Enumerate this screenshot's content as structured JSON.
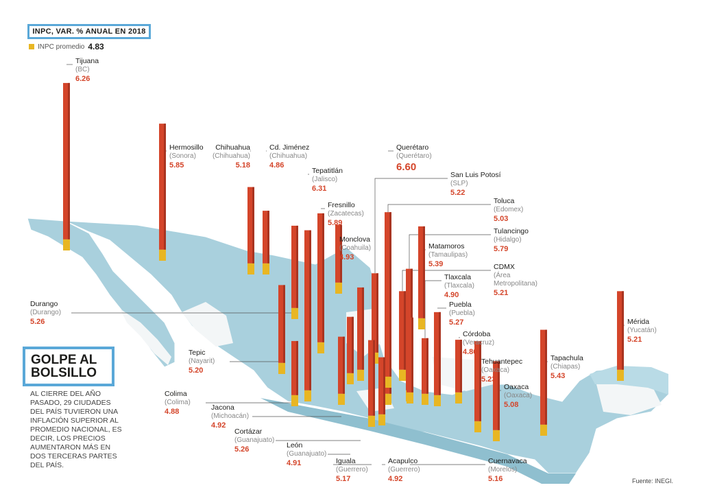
{
  "header": {
    "title": "INPC, VAR. % ANUAL EN 2018"
  },
  "average": {
    "label": "INPC promedio",
    "value": "4.83"
  },
  "sidebar": {
    "title": "GOLPE AL\nBOLSILLO",
    "body": "Al cierre del año pasado, 29 ciudades del país tuvieron una inflación superior al promedio nacional, es decir, los precios aumentaron más en dos terceras partes del país."
  },
  "source": "Fuente: INEGI.",
  "colors": {
    "bar": "#d4452a",
    "average_segment": "#e8b623",
    "map": "#a9d0dd",
    "accent_border": "#5aa8d8"
  },
  "chart_data": {
    "type": "bar",
    "title": "INPC, VAR. % ANUAL EN 2018",
    "average": 4.83,
    "highlight": "Querétaro",
    "series": [
      {
        "city": "Tijuana",
        "state": "BC",
        "value": "6.26"
      },
      {
        "city": "Hermosillo",
        "state": "Sonora",
        "value": "5.85"
      },
      {
        "city": "Chihuahua",
        "state": "Chihuahua",
        "value": "5.18"
      },
      {
        "city": "Cd. Jiménez",
        "state": "Chihuahua",
        "value": "4.86"
      },
      {
        "city": "Tepatitlán",
        "state": "Jalisco",
        "value": "6.31"
      },
      {
        "city": "Fresnillo",
        "state": "Zacatecas",
        "value": "5.89"
      },
      {
        "city": "Monclova",
        "state": "Coahuila",
        "value": "4.93"
      },
      {
        "city": "Querétaro",
        "state": "Querétaro",
        "value": "6.60"
      },
      {
        "city": "San Luis Potosí",
        "state": "SLP",
        "value": "5.22"
      },
      {
        "city": "Toluca",
        "state": "Edomex",
        "value": "5.03"
      },
      {
        "city": "Tulancingo",
        "state": "Hidalgo",
        "value": "5.79"
      },
      {
        "city": "Matamoros",
        "state": "Tamaulipas",
        "value": "5.39"
      },
      {
        "city": "CDMX",
        "state": "Área Metropolitana",
        "value": "5.21"
      },
      {
        "city": "Tlaxcala",
        "state": "Tlaxcala",
        "value": "4.90"
      },
      {
        "city": "Puebla",
        "state": "Puebla",
        "value": "5.27"
      },
      {
        "city": "Córdoba",
        "state": "Veracruz",
        "value": "4.86"
      },
      {
        "city": "Tehuantepec",
        "state": "Oaxaca",
        "value": "5.23"
      },
      {
        "city": "Oaxaca",
        "state": "Oaxaca",
        "value": "5.08"
      },
      {
        "city": "Tapachula",
        "state": "Chiapas",
        "value": "5.43"
      },
      {
        "city": "Mérida",
        "state": "Yucatán",
        "value": "5.21"
      },
      {
        "city": "Durango",
        "state": "Durango",
        "value": "5.26"
      },
      {
        "city": "Tepic",
        "state": "Nayarit",
        "value": "5.20"
      },
      {
        "city": "Colima",
        "state": "Colima",
        "value": "4.88"
      },
      {
        "city": "Jacona",
        "state": "Michoacán",
        "value": "4.92"
      },
      {
        "city": "Cortázar",
        "state": "Guanajuato",
        "value": "5.26"
      },
      {
        "city": "León",
        "state": "Guanajuato",
        "value": "4.91"
      },
      {
        "city": "Iguala",
        "state": "Guerrero",
        "value": "5.17"
      },
      {
        "city": "Acapulco",
        "state": "Guerrero",
        "value": "4.92"
      },
      {
        "city": "Cuernavaca",
        "state": "Morelos",
        "value": "5.16"
      }
    ]
  }
}
